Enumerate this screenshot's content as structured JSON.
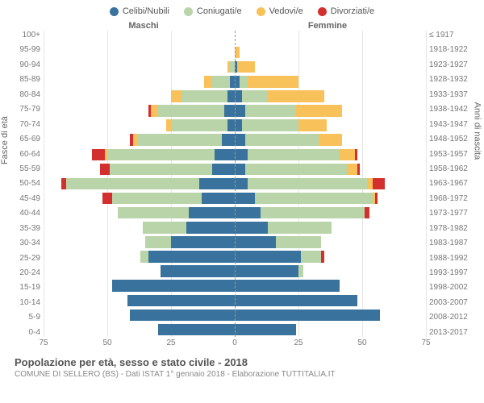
{
  "legend": [
    {
      "label": "Celibi/Nubili",
      "color": "#39739d"
    },
    {
      "label": "Coniugati/e",
      "color": "#b9d4a8"
    },
    {
      "label": "Vedovi/e",
      "color": "#f8c15a"
    },
    {
      "label": "Divorziati/e",
      "color": "#d32f2f"
    }
  ],
  "headers": {
    "male": "Maschi",
    "female": "Femmine"
  },
  "yaxis_left_label": "Fasce di età",
  "yaxis_right_label": "Anni di nascita",
  "title": "Popolazione per età, sesso e stato civile - 2018",
  "subtitle": "COMUNE DI SELLERO (BS) - Dati ISTAT 1° gennaio 2018 - Elaborazione TUTTITALIA.IT",
  "xmax": 75,
  "xticks": [
    75,
    50,
    25,
    0,
    25,
    50,
    75
  ],
  "colors": {
    "single": "#39739d",
    "married": "#b9d4a8",
    "widowed": "#f8c15a",
    "divorced": "#d32f2f",
    "grid": "#e5e5e5",
    "dash": "#999999"
  },
  "rows": [
    {
      "age": "100+",
      "birth": "≤ 1917",
      "m": {
        "s": 0,
        "m": 0,
        "w": 0,
        "d": 0
      },
      "f": {
        "s": 0,
        "m": 0,
        "w": 0,
        "d": 0
      }
    },
    {
      "age": "95-99",
      "birth": "1918-1922",
      "m": {
        "s": 0,
        "m": 0,
        "w": 0,
        "d": 0
      },
      "f": {
        "s": 0,
        "m": 0,
        "w": 2,
        "d": 0
      }
    },
    {
      "age": "90-94",
      "birth": "1923-1927",
      "m": {
        "s": 0,
        "m": 2,
        "w": 1,
        "d": 0
      },
      "f": {
        "s": 1,
        "m": 0,
        "w": 7,
        "d": 0
      }
    },
    {
      "age": "85-89",
      "birth": "1928-1932",
      "m": {
        "s": 2,
        "m": 7,
        "w": 3,
        "d": 0
      },
      "f": {
        "s": 2,
        "m": 3,
        "w": 20,
        "d": 0
      }
    },
    {
      "age": "80-84",
      "birth": "1933-1937",
      "m": {
        "s": 3,
        "m": 18,
        "w": 4,
        "d": 0
      },
      "f": {
        "s": 3,
        "m": 10,
        "w": 22,
        "d": 0
      }
    },
    {
      "age": "75-79",
      "birth": "1938-1942",
      "m": {
        "s": 4,
        "m": 26,
        "w": 3,
        "d": 1
      },
      "f": {
        "s": 4,
        "m": 20,
        "w": 18,
        "d": 0
      }
    },
    {
      "age": "70-74",
      "birth": "1943-1947",
      "m": {
        "s": 3,
        "m": 22,
        "w": 2,
        "d": 0
      },
      "f": {
        "s": 3,
        "m": 22,
        "w": 11,
        "d": 0
      }
    },
    {
      "age": "65-69",
      "birth": "1948-1952",
      "m": {
        "s": 5,
        "m": 33,
        "w": 2,
        "d": 1
      },
      "f": {
        "s": 4,
        "m": 29,
        "w": 9,
        "d": 0
      }
    },
    {
      "age": "60-64",
      "birth": "1953-1957",
      "m": {
        "s": 8,
        "m": 42,
        "w": 1,
        "d": 5
      },
      "f": {
        "s": 5,
        "m": 36,
        "w": 6,
        "d": 1
      }
    },
    {
      "age": "55-59",
      "birth": "1958-1962",
      "m": {
        "s": 9,
        "m": 40,
        "w": 0,
        "d": 4
      },
      "f": {
        "s": 4,
        "m": 40,
        "w": 4,
        "d": 1
      }
    },
    {
      "age": "50-54",
      "birth": "1963-1967",
      "m": {
        "s": 14,
        "m": 52,
        "w": 0,
        "d": 2
      },
      "f": {
        "s": 5,
        "m": 47,
        "w": 2,
        "d": 5
      }
    },
    {
      "age": "45-49",
      "birth": "1968-1972",
      "m": {
        "s": 13,
        "m": 35,
        "w": 0,
        "d": 4
      },
      "f": {
        "s": 8,
        "m": 46,
        "w": 1,
        "d": 1
      }
    },
    {
      "age": "40-44",
      "birth": "1973-1977",
      "m": {
        "s": 18,
        "m": 28,
        "w": 0,
        "d": 0
      },
      "f": {
        "s": 10,
        "m": 41,
        "w": 0,
        "d": 2
      }
    },
    {
      "age": "35-39",
      "birth": "1978-1982",
      "m": {
        "s": 19,
        "m": 17,
        "w": 0,
        "d": 0
      },
      "f": {
        "s": 13,
        "m": 25,
        "w": 0,
        "d": 0
      }
    },
    {
      "age": "30-34",
      "birth": "1983-1987",
      "m": {
        "s": 25,
        "m": 10,
        "w": 0,
        "d": 0
      },
      "f": {
        "s": 16,
        "m": 18,
        "w": 0,
        "d": 0
      }
    },
    {
      "age": "25-29",
      "birth": "1988-1992",
      "m": {
        "s": 34,
        "m": 3,
        "w": 0,
        "d": 0
      },
      "f": {
        "s": 26,
        "m": 8,
        "w": 0,
        "d": 1
      }
    },
    {
      "age": "20-24",
      "birth": "1993-1997",
      "m": {
        "s": 29,
        "m": 0,
        "w": 0,
        "d": 0
      },
      "f": {
        "s": 25,
        "m": 2,
        "w": 0,
        "d": 0
      }
    },
    {
      "age": "15-19",
      "birth": "1998-2002",
      "m": {
        "s": 48,
        "m": 0,
        "w": 0,
        "d": 0
      },
      "f": {
        "s": 41,
        "m": 0,
        "w": 0,
        "d": 0
      }
    },
    {
      "age": "10-14",
      "birth": "2003-2007",
      "m": {
        "s": 42,
        "m": 0,
        "w": 0,
        "d": 0
      },
      "f": {
        "s": 48,
        "m": 0,
        "w": 0,
        "d": 0
      }
    },
    {
      "age": "5-9",
      "birth": "2008-2012",
      "m": {
        "s": 41,
        "m": 0,
        "w": 0,
        "d": 0
      },
      "f": {
        "s": 57,
        "m": 0,
        "w": 0,
        "d": 0
      }
    },
    {
      "age": "0-4",
      "birth": "2013-2017",
      "m": {
        "s": 30,
        "m": 0,
        "w": 0,
        "d": 0
      },
      "f": {
        "s": 24,
        "m": 0,
        "w": 0,
        "d": 0
      }
    }
  ]
}
